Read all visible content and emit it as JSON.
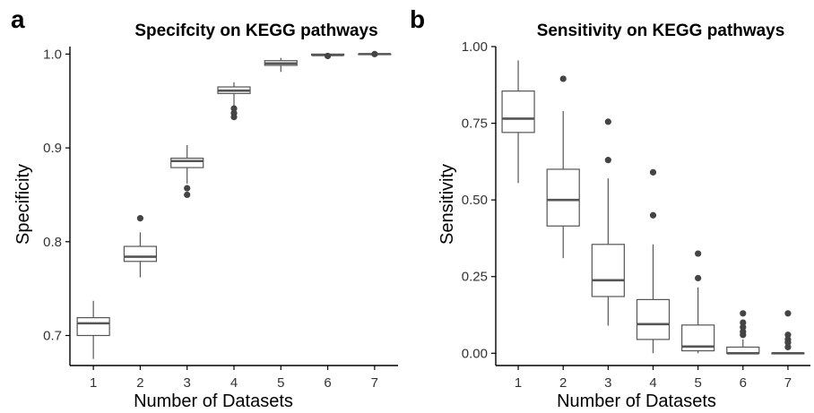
{
  "colors": {
    "box_fill": "#ffffff",
    "box_stroke": "#555555",
    "median_stroke": "#555555",
    "outlier_fill": "#444444",
    "axis": "#000000",
    "text": "#000000",
    "tick_text": "#333333",
    "background": "#ffffff"
  },
  "chart_data": [
    {
      "type": "boxplot",
      "panel_letter": "a",
      "title": "Specifcity on KEGG pathways",
      "xlabel": "Number of Datasets",
      "ylabel": "Specificity",
      "ylim": [
        0.668,
        1.008
      ],
      "yticks": [
        "0.7",
        "0.8",
        "0.9",
        "1.0"
      ],
      "grid": false,
      "legend": "none",
      "categories": [
        "1",
        "2",
        "3",
        "4",
        "5",
        "6",
        "7"
      ],
      "boxes": [
        {
          "category": "1",
          "q1": 0.7,
          "median": 0.713,
          "q3": 0.719,
          "whisker_low": 0.675,
          "whisker_high": 0.737,
          "outliers": []
        },
        {
          "category": "2",
          "q1": 0.779,
          "median": 0.784,
          "q3": 0.795,
          "whisker_low": 0.762,
          "whisker_high": 0.81,
          "outliers": [
            0.825
          ]
        },
        {
          "category": "3",
          "q1": 0.879,
          "median": 0.886,
          "q3": 0.889,
          "whisker_low": 0.862,
          "whisker_high": 0.903,
          "outliers": [
            0.857,
            0.85
          ]
        },
        {
          "category": "4",
          "q1": 0.958,
          "median": 0.961,
          "q3": 0.965,
          "whisker_low": 0.945,
          "whisker_high": 0.97,
          "outliers": [
            0.942,
            0.937,
            0.933
          ]
        },
        {
          "category": "5",
          "q1": 0.988,
          "median": 0.99,
          "q3": 0.993,
          "whisker_low": 0.981,
          "whisker_high": 0.996,
          "outliers": []
        },
        {
          "category": "6",
          "q1": 0.999,
          "median": 0.999,
          "q3": 1.0,
          "whisker_low": 0.998,
          "whisker_high": 1.0,
          "outliers": [
            0.998
          ]
        },
        {
          "category": "7",
          "q1": 1.0,
          "median": 1.0,
          "q3": 1.0,
          "whisker_low": 1.0,
          "whisker_high": 1.0,
          "outliers": [
            1.0
          ]
        }
      ]
    },
    {
      "type": "boxplot",
      "panel_letter": "b",
      "title": "Sensitivity on KEGG pathways",
      "xlabel": "Number of Datasets",
      "ylabel": "Sensitivity",
      "ylim": [
        -0.04,
        1.0
      ],
      "yticks": [
        "0.00",
        "0.25",
        "0.50",
        "0.75",
        "1.00"
      ],
      "grid": false,
      "legend": "none",
      "categories": [
        "1",
        "2",
        "3",
        "4",
        "5",
        "6",
        "7"
      ],
      "boxes": [
        {
          "category": "1",
          "q1": 0.72,
          "median": 0.765,
          "q3": 0.855,
          "whisker_low": 0.555,
          "whisker_high": 0.955,
          "outliers": []
        },
        {
          "category": "2",
          "q1": 0.415,
          "median": 0.5,
          "q3": 0.6,
          "whisker_low": 0.31,
          "whisker_high": 0.79,
          "outliers": [
            0.895
          ]
        },
        {
          "category": "3",
          "q1": 0.185,
          "median": 0.238,
          "q3": 0.355,
          "whisker_low": 0.09,
          "whisker_high": 0.57,
          "outliers": [
            0.755,
            0.63
          ]
        },
        {
          "category": "4",
          "q1": 0.045,
          "median": 0.095,
          "q3": 0.175,
          "whisker_low": 0.0,
          "whisker_high": 0.355,
          "outliers": [
            0.59,
            0.45
          ]
        },
        {
          "category": "5",
          "q1": 0.008,
          "median": 0.022,
          "q3": 0.092,
          "whisker_low": 0.0,
          "whisker_high": 0.215,
          "outliers": [
            0.325,
            0.245
          ]
        },
        {
          "category": "6",
          "q1": 0.0,
          "median": 0.0,
          "q3": 0.02,
          "whisker_low": 0.0,
          "whisker_high": 0.045,
          "outliers": [
            0.13,
            0.1,
            0.085,
            0.07,
            0.06
          ]
        },
        {
          "category": "7",
          "q1": 0.0,
          "median": 0.0,
          "q3": 0.0,
          "whisker_low": 0.0,
          "whisker_high": 0.0,
          "outliers": [
            0.13,
            0.06,
            0.045,
            0.035,
            0.02
          ]
        }
      ]
    }
  ]
}
